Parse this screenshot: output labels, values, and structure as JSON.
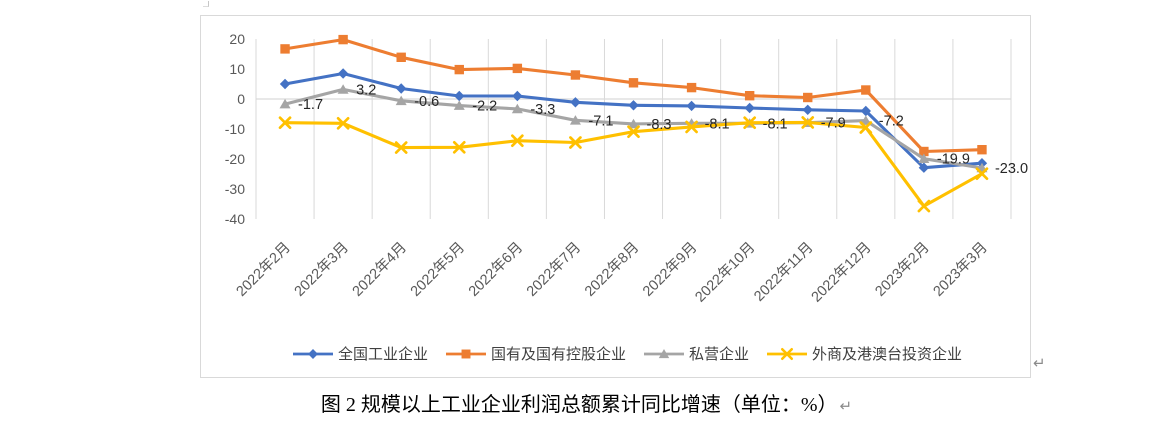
{
  "document": {
    "return_mark": "↵"
  },
  "chart_data": {
    "type": "line",
    "title": "图 2 规模以上工业企业利润总额累计同比增速（单位：%）",
    "categories": [
      "2022年2月",
      "2022年3月",
      "2022年4月",
      "2022年5月",
      "2022年6月",
      "2022年7月",
      "2022年8月",
      "2022年9月",
      "2022年10月",
      "2022年11月",
      "2022年12月",
      "2023年2月",
      "2023年3月"
    ],
    "series": [
      {
        "name": "全国工业企业",
        "color": "#4472C4",
        "marker": "diamond",
        "values": [
          5.0,
          8.5,
          3.5,
          1.0,
          1.0,
          -1.1,
          -2.1,
          -2.3,
          -3.0,
          -3.6,
          -4.0,
          -22.9,
          -21.4
        ]
      },
      {
        "name": "国有及国有控股企业",
        "color": "#ED7D31",
        "marker": "square",
        "values": [
          16.7,
          19.8,
          13.9,
          9.8,
          10.2,
          8.0,
          5.4,
          3.8,
          1.1,
          0.5,
          3.0,
          -17.5,
          -16.9
        ]
      },
      {
        "name": "私营企业",
        "color": "#A5A5A5",
        "marker": "triangle",
        "data_labels": true,
        "values": [
          -1.7,
          3.2,
          -0.6,
          -2.2,
          -3.3,
          -7.1,
          -8.3,
          -8.1,
          -8.1,
          -7.9,
          -7.2,
          -19.9,
          -23.0
        ]
      },
      {
        "name": "外商及港澳台投资企业",
        "color": "#FFC000",
        "marker": "x",
        "values": [
          -7.9,
          -8.1,
          -16.2,
          -16.1,
          -13.9,
          -14.5,
          -10.9,
          -9.3,
          -7.9,
          -7.8,
          -9.5,
          -35.7,
          -24.9
        ]
      }
    ],
    "yticks": [
      20,
      10,
      0,
      -10,
      -20,
      -30,
      -40
    ],
    "ylim": [
      -40,
      20
    ],
    "xlabel": "",
    "ylabel": "",
    "grid": "vertical-only",
    "legend_position": "bottom",
    "style": {
      "grid_color": "#D9D9D9",
      "border_color": "#D9D9D9",
      "axis_text_color": "#595959",
      "data_label_color": "#262626",
      "legend_text_color": "#404040"
    }
  }
}
